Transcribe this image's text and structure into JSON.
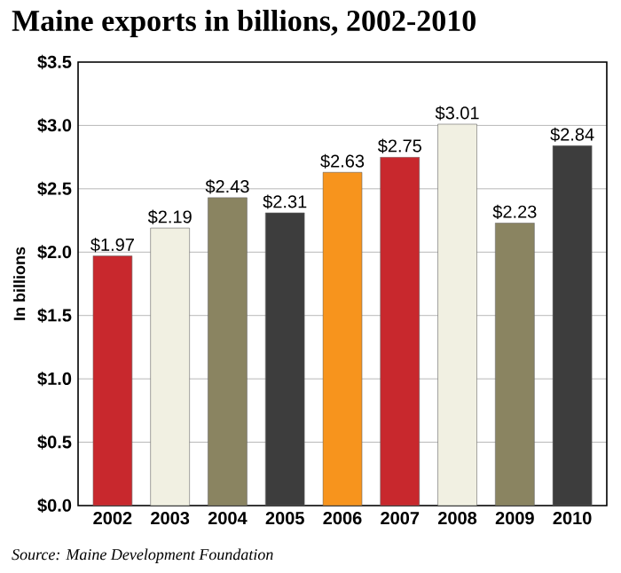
{
  "chart_data": {
    "type": "bar",
    "title": "Maine exports in billions, 2002-2010",
    "ylabel": "In billions",
    "categories": [
      "2002",
      "2003",
      "2004",
      "2005",
      "2006",
      "2007",
      "2008",
      "2009",
      "2010"
    ],
    "values": [
      1.97,
      2.19,
      2.43,
      2.31,
      2.63,
      2.75,
      3.01,
      2.23,
      2.84
    ],
    "value_labels": [
      "$1.97",
      "$2.19",
      "$2.43",
      "$2.31",
      "$2.63",
      "$2.75",
      "$3.01",
      "$2.23",
      "$2.84"
    ],
    "colors": [
      "#c8282d",
      "#f1f0e2",
      "#8a8461",
      "#3d3d3d",
      "#f7941d",
      "#c8282d",
      "#f1f0e2",
      "#8a8461",
      "#3d3d3d"
    ],
    "ylim": [
      0,
      3.5
    ],
    "yticks": [
      {
        "value": 0,
        "label": "$0.0"
      },
      {
        "value": 0.5,
        "label": "$0.5"
      },
      {
        "value": 1,
        "label": "$1.0"
      },
      {
        "value": 1.5,
        "label": "$1.5"
      },
      {
        "value": 2,
        "label": "$2.0"
      },
      {
        "value": 2.5,
        "label": "$2.5"
      },
      {
        "value": 3,
        "label": "$3.0"
      },
      {
        "value": 3.5,
        "label": "$3.5"
      }
    ],
    "grid": "y",
    "annotations": [
      "Source: Maine Development Foundation"
    ]
  }
}
